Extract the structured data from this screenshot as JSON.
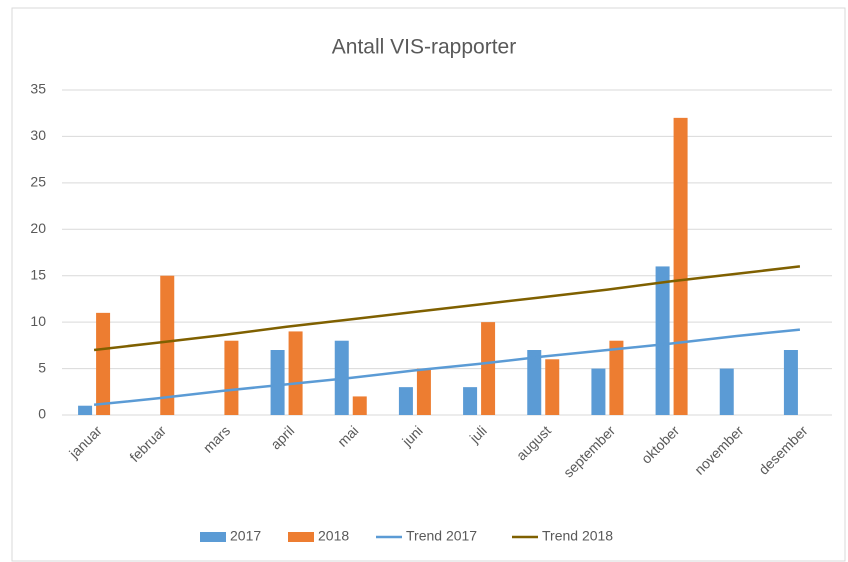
{
  "chart_data": {
    "type": "bar",
    "title": "Antall VIS-rapporter",
    "categories": [
      "januar",
      "februar",
      "mars",
      "april",
      "mai",
      "juni",
      "juli",
      "august",
      "september",
      "oktober",
      "november",
      "desember"
    ],
    "series": [
      {
        "name": "2017",
        "type": "bar",
        "color": "#5b9bd5",
        "values": [
          1,
          null,
          null,
          7,
          8,
          3,
          3,
          7,
          5,
          16,
          5,
          7
        ]
      },
      {
        "name": "2018",
        "type": "bar",
        "color": "#ed7d31",
        "values": [
          11,
          15,
          8,
          9,
          2,
          5,
          10,
          6,
          8,
          32,
          null,
          null
        ]
      },
      {
        "name": "Trend 2017",
        "type": "line",
        "color": "#5b9bd5",
        "values": [
          1.1,
          1.8,
          2.6,
          3.3,
          4.0,
          4.8,
          5.5,
          6.3,
          7.0,
          7.7,
          8.5,
          9.2
        ]
      },
      {
        "name": "Trend 2018",
        "type": "line",
        "color": "#7f6000",
        "values": [
          7.0,
          7.8,
          8.6,
          9.5,
          10.3,
          11.1,
          11.9,
          12.7,
          13.5,
          14.4,
          15.2,
          16.0
        ]
      }
    ],
    "ylim": [
      0,
      35
    ],
    "yticks": [
      0,
      5,
      10,
      15,
      20,
      25,
      30,
      35
    ],
    "grid": true,
    "legend": "bottom"
  }
}
